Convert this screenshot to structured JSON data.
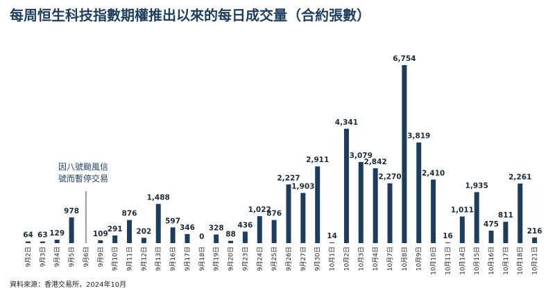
{
  "title": "每周恒生科技指數期權推出以來的每日成交量（合約張數）",
  "source": "資料來源：香港交易所，2024年10月",
  "annotation": [
    "因八號颱風信",
    "號而暫停交易"
  ],
  "colors": {
    "bar": "#1c3d5e",
    "divider": "#a6a6a6",
    "title": "#1c3d5e"
  },
  "chart_data": {
    "type": "bar",
    "title": "每周恒生科技指數期權推出以來的每日成交量（合約張數）",
    "xlabel": "",
    "ylabel": "",
    "ylim": [
      0,
      7000
    ],
    "grid": false,
    "legend": "none",
    "categories": [
      "9月2日",
      "9月3日",
      "9月4日",
      "9月5日",
      "9月6日",
      "9月9日",
      "9月10日",
      "9月11日",
      "9月12日",
      "9月13日",
      "9月16日",
      "9月17日",
      "9月18日",
      "9月19日",
      "9月20日",
      "9月23日",
      "9月24日",
      "9月25日",
      "9月26日",
      "9月27日",
      "9月30日",
      "10月1日",
      "10月2日",
      "10月3日",
      "10月4日",
      "10月7日",
      "10月8日",
      "10月9日",
      "10月10日",
      "10月11日",
      "10月14日",
      "10月15日",
      "10月16日",
      "10月17日",
      "10月18日",
      "10月21日"
    ],
    "values": [
      64,
      63,
      129,
      978,
      null,
      109,
      291,
      876,
      202,
      1488,
      597,
      346,
      0,
      328,
      88,
      436,
      1022,
      876,
      2227,
      1903,
      2911,
      14,
      4341,
      3079,
      2842,
      2270,
      6754,
      3819,
      2410,
      16,
      1011,
      1935,
      475,
      811,
      2261,
      216
    ],
    "labels": [
      "64",
      "63",
      "129",
      "978",
      "",
      "109",
      "291",
      "876",
      "202",
      "1,488",
      "597",
      "346",
      "0",
      "328",
      "88",
      "436",
      "1,022",
      "876",
      "2,227",
      "1,903",
      "2,911",
      "14",
      "4,341",
      "3,079",
      "2,842",
      "2,270",
      "6,754",
      "3,819",
      "2,410",
      "16",
      "1,011",
      "1,935",
      "475",
      "811",
      "2,261",
      "216"
    ],
    "suspended_index": 4
  }
}
